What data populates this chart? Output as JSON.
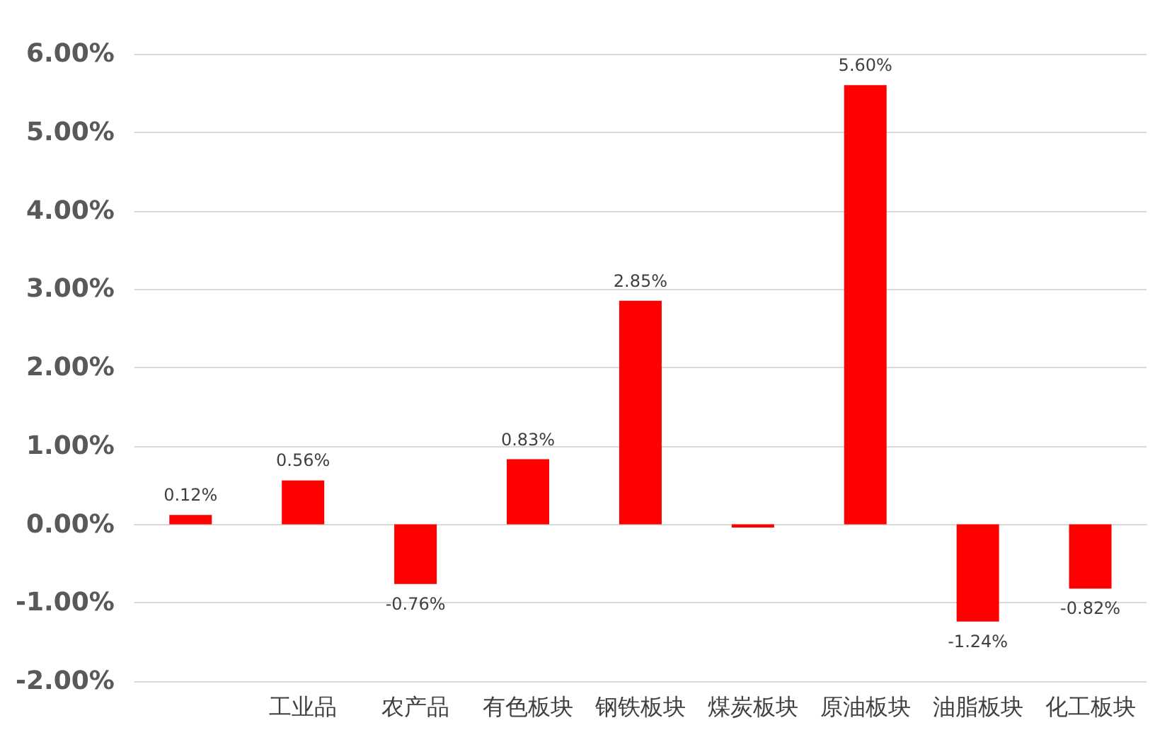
{
  "chart_data": {
    "type": "bar",
    "categories": [
      null,
      "工业品",
      "农产品",
      "有色板块",
      "钢铁板块",
      "煤炭板块",
      "原油板块",
      "油脂板块",
      "化工板块"
    ],
    "values": [
      0.12,
      0.56,
      -0.76,
      0.83,
      2.85,
      -0.04,
      5.6,
      -1.24,
      -0.82
    ],
    "value_labels": [
      "0.12%",
      "0.56%",
      "-0.76%",
      "0.83%",
      "2.85%",
      null,
      "5.60%",
      "-1.24%",
      "-0.82%"
    ],
    "color": "#ff0000",
    "ylim": [
      -2,
      6
    ],
    "yticks": [
      {
        "value": -2,
        "label": "-2.00%"
      },
      {
        "value": -1,
        "label": "-1.00%"
      },
      {
        "value": 0,
        "label": "0.00%"
      },
      {
        "value": 1,
        "label": "1.00%"
      },
      {
        "value": 2,
        "label": "2.00%"
      },
      {
        "value": 3,
        "label": "3.00%"
      },
      {
        "value": 4,
        "label": "4.00%"
      },
      {
        "value": 5,
        "label": "5.00%"
      },
      {
        "value": 6,
        "label": "6.00%"
      }
    ],
    "grid": "y"
  }
}
